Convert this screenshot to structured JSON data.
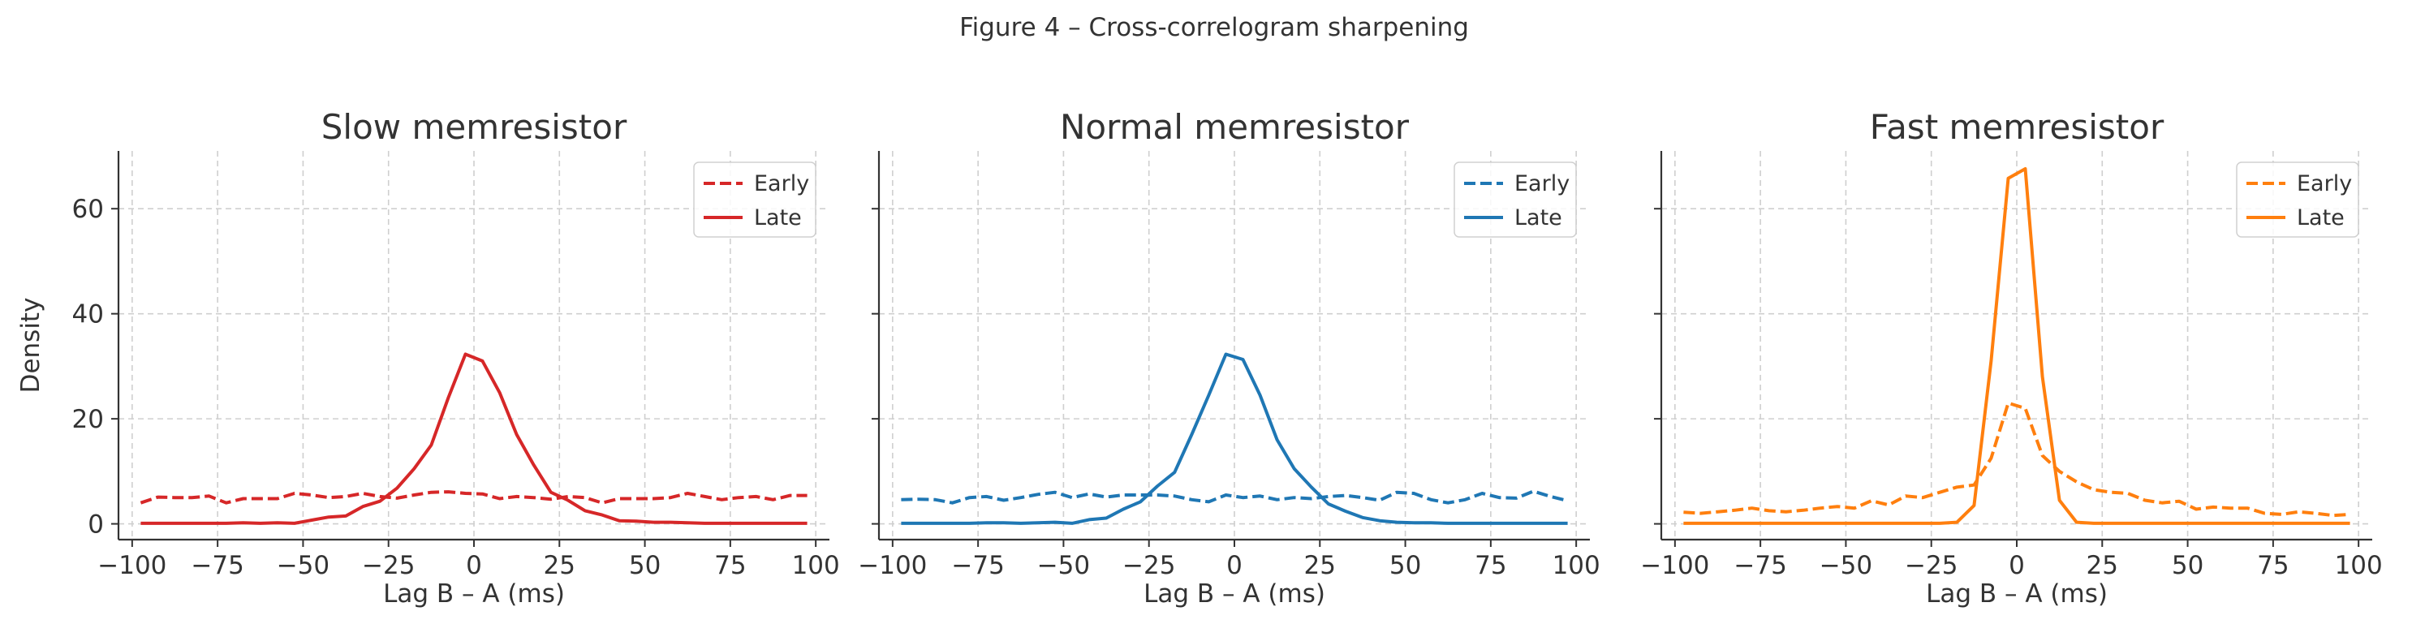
{
  "figure": {
    "title": "Figure 4 – Cross-correlogram sharpening"
  },
  "chart_data": [
    {
      "type": "line",
      "title": "Slow memresistor",
      "xlabel": "Lag B – A (ms)",
      "ylabel": "Density",
      "xlim": [
        -104,
        104
      ],
      "ylim": [
        -3,
        71
      ],
      "xticks": [
        -100,
        -75,
        -50,
        -25,
        0,
        25,
        50,
        75,
        100
      ],
      "yticks": [
        0,
        20,
        40,
        60
      ],
      "grid": true,
      "legend_position": "top-right",
      "color": "#d62728",
      "x": [
        -97.5,
        -92.5,
        -87.5,
        -82.5,
        -77.5,
        -72.5,
        -67.5,
        -62.5,
        -57.5,
        -52.5,
        -47.5,
        -42.5,
        -37.5,
        -32.5,
        -27.5,
        -22.5,
        -17.5,
        -12.5,
        -7.5,
        -2.5,
        2.5,
        7.5,
        12.5,
        17.5,
        22.5,
        27.5,
        32.5,
        37.5,
        42.5,
        47.5,
        52.5,
        57.5,
        62.5,
        67.5,
        72.5,
        77.5,
        82.5,
        87.5,
        92.5,
        97.5
      ],
      "series": [
        {
          "name": "Early",
          "style": "dashed",
          "values": [
            4.0,
            5.1,
            5.0,
            5.0,
            5.3,
            4.0,
            4.8,
            4.8,
            4.8,
            5.8,
            5.5,
            5.0,
            5.2,
            5.8,
            5.2,
            4.9,
            5.5,
            6.0,
            6.1,
            5.8,
            5.7,
            4.8,
            5.2,
            5.0,
            4.7,
            5.2,
            5.0,
            4.0,
            4.8,
            4.8,
            4.8,
            5.0,
            5.8,
            5.2,
            4.6,
            5.0,
            5.2,
            4.6,
            5.4,
            5.4
          ]
        },
        {
          "name": "Late",
          "style": "solid",
          "values": [
            0.1,
            0.1,
            0.1,
            0.1,
            0.1,
            0.1,
            0.2,
            0.1,
            0.2,
            0.1,
            0.7,
            1.3,
            1.5,
            3.3,
            4.3,
            6.8,
            10.5,
            15.0,
            24.0,
            32.3,
            31.0,
            25.0,
            17.0,
            11.2,
            6.0,
            4.5,
            2.5,
            1.7,
            0.6,
            0.5,
            0.3,
            0.3,
            0.2,
            0.1,
            0.1,
            0.1,
            0.1,
            0.1,
            0.1,
            0.1
          ]
        }
      ]
    },
    {
      "type": "line",
      "title": "Normal memresistor",
      "xlabel": "Lag B – A (ms)",
      "ylabel": "",
      "xlim": [
        -104,
        104
      ],
      "ylim": [
        -3,
        71
      ],
      "xticks": [
        -100,
        -75,
        -50,
        -25,
        0,
        25,
        50,
        75,
        100
      ],
      "yticks": [
        0,
        20,
        40,
        60
      ],
      "grid": true,
      "legend_position": "top-right",
      "color": "#1f77b4",
      "x": [
        -97.5,
        -92.5,
        -87.5,
        -82.5,
        -77.5,
        -72.5,
        -67.5,
        -62.5,
        -57.5,
        -52.5,
        -47.5,
        -42.5,
        -37.5,
        -32.5,
        -27.5,
        -22.5,
        -17.5,
        -12.5,
        -7.5,
        -2.5,
        2.5,
        7.5,
        12.5,
        17.5,
        22.5,
        27.5,
        32.5,
        37.5,
        42.5,
        47.5,
        52.5,
        57.5,
        62.5,
        67.5,
        72.5,
        77.5,
        82.5,
        87.5,
        92.5,
        97.5
      ],
      "series": [
        {
          "name": "Early",
          "style": "dashed",
          "values": [
            4.6,
            4.7,
            4.6,
            4.0,
            5.0,
            5.2,
            4.5,
            5.0,
            5.6,
            6.0,
            5.0,
            5.7,
            5.1,
            5.5,
            5.5,
            5.5,
            5.3,
            4.6,
            4.2,
            5.5,
            5.0,
            5.3,
            4.6,
            5.0,
            4.8,
            5.2,
            5.4,
            5.0,
            4.5,
            6.0,
            5.8,
            4.6,
            4.0,
            4.6,
            5.8,
            5.0,
            4.9,
            6.2,
            5.2,
            4.4
          ]
        },
        {
          "name": "Late",
          "style": "solid",
          "values": [
            0.1,
            0.1,
            0.1,
            0.1,
            0.1,
            0.2,
            0.2,
            0.1,
            0.2,
            0.3,
            0.1,
            0.8,
            1.1,
            2.8,
            4.2,
            7.2,
            9.8,
            17.0,
            24.5,
            32.3,
            31.3,
            24.5,
            16.0,
            10.5,
            7.0,
            3.8,
            2.4,
            1.2,
            0.6,
            0.3,
            0.2,
            0.2,
            0.1,
            0.1,
            0.1,
            0.1,
            0.1,
            0.1,
            0.1,
            0.1
          ]
        }
      ]
    },
    {
      "type": "line",
      "title": "Fast memresistor",
      "xlabel": "Lag B – A (ms)",
      "ylabel": "",
      "xlim": [
        -104,
        104
      ],
      "ylim": [
        -3,
        71
      ],
      "xticks": [
        -100,
        -75,
        -50,
        -25,
        0,
        25,
        50,
        75,
        100
      ],
      "yticks": [
        0,
        20,
        40,
        60
      ],
      "grid": true,
      "legend_position": "top-right",
      "color": "#ff7f0e",
      "x": [
        -97.5,
        -92.5,
        -87.5,
        -82.5,
        -77.5,
        -72.5,
        -67.5,
        -62.5,
        -57.5,
        -52.5,
        -47.5,
        -42.5,
        -37.5,
        -32.5,
        -27.5,
        -22.5,
        -17.5,
        -12.5,
        -7.5,
        -2.5,
        2.5,
        7.5,
        12.5,
        17.5,
        22.5,
        27.5,
        32.5,
        37.5,
        42.5,
        47.5,
        52.5,
        57.5,
        62.5,
        67.5,
        72.5,
        77.5,
        82.5,
        87.5,
        92.5,
        97.5
      ],
      "series": [
        {
          "name": "Early",
          "style": "dashed",
          "values": [
            2.2,
            2.0,
            2.3,
            2.6,
            3.0,
            2.5,
            2.3,
            2.6,
            3.0,
            3.3,
            3.0,
            4.4,
            3.6,
            5.3,
            5.0,
            6.0,
            7.0,
            7.4,
            12.5,
            23.0,
            22.0,
            13.0,
            10.0,
            8.0,
            6.5,
            6.0,
            5.8,
            4.5,
            4.0,
            4.3,
            2.8,
            3.2,
            3.0,
            3.0,
            2.0,
            1.8,
            2.3,
            2.0,
            1.6,
            1.8
          ]
        },
        {
          "name": "Late",
          "style": "solid",
          "values": [
            0.1,
            0.1,
            0.1,
            0.1,
            0.1,
            0.1,
            0.1,
            0.1,
            0.1,
            0.1,
            0.1,
            0.1,
            0.1,
            0.1,
            0.1,
            0.1,
            0.3,
            3.5,
            31.0,
            65.8,
            67.6,
            28.0,
            4.5,
            0.3,
            0.1,
            0.1,
            0.1,
            0.1,
            0.1,
            0.1,
            0.1,
            0.1,
            0.1,
            0.1,
            0.1,
            0.1,
            0.1,
            0.1,
            0.1,
            0.1
          ]
        }
      ]
    }
  ]
}
